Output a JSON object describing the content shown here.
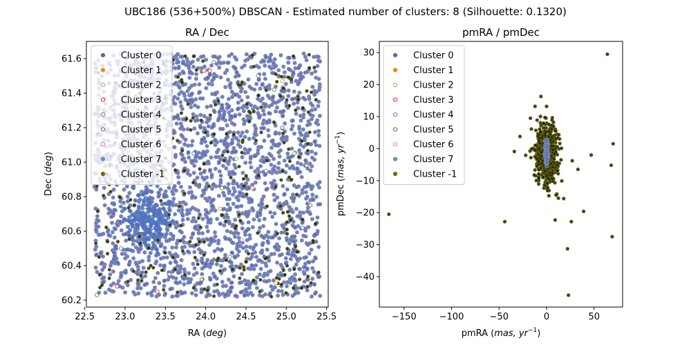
{
  "figure": {
    "suptitle": "UBC186 (536+500%) DBSCAN - Estimated number of clusters: 8 (Silhouette: 0.1320)"
  },
  "chart_data": [
    {
      "type": "scatter",
      "title": "RA / Dec",
      "xlabel_text": "RA (",
      "xlabel_math": "deg",
      "xlabel_close": ")",
      "ylabel_text": "Dec (",
      "ylabel_math": "deg",
      "ylabel_close": ")",
      "xlim": [
        22.52,
        25.52
      ],
      "ylim": [
        60.16,
        61.7
      ],
      "xticks": [
        22.5,
        23.0,
        23.5,
        24.0,
        24.5,
        25.0,
        25.5
      ],
      "xtick_labels": [
        "22.5",
        "23.0",
        "23.5",
        "24.0",
        "24.5",
        "25.0",
        "25.5"
      ],
      "yticks": [
        60.2,
        60.4,
        60.6,
        60.8,
        61.0,
        61.2,
        61.4,
        61.6
      ],
      "ytick_labels": [
        "60.2",
        "60.4",
        "60.6",
        "60.8",
        "61.0",
        "61.2",
        "61.4",
        "61.6"
      ],
      "legend_position": "top-left",
      "noise_x_range": [
        22.62,
        25.42
      ],
      "noise_y_range": [
        60.22,
        61.63
      ],
      "cluster_center": [
        23.3,
        60.66
      ],
      "series": [
        {
          "name": "Cluster 0",
          "color": "#5b6aa8",
          "points": [
            [
              22.72,
              60.9
            ],
            [
              23.1,
              61.32
            ],
            [
              23.85,
              61.05
            ],
            [
              24.3,
              60.45
            ],
            [
              24.95,
              61.2
            ],
            [
              25.2,
              60.62
            ],
            [
              23.55,
              60.35
            ],
            [
              24.65,
              61.5
            ],
            [
              22.95,
              60.5
            ],
            [
              24.1,
              61.58
            ]
          ]
        },
        {
          "name": "Cluster 1",
          "color": "#ff7f0e",
          "points": [
            [
              23.98,
              61.53
            ],
            [
              24.95,
              61.47
            ],
            [
              24.18,
              60.73
            ],
            [
              24.58,
              60.85
            ],
            [
              24.87,
              60.3
            ]
          ]
        },
        {
          "name": "Cluster 2",
          "color": "#7fb85a",
          "points": [
            [
              25.1,
              61.05
            ],
            [
              23.55,
              61.25
            ],
            [
              24.38,
              61.02
            ]
          ]
        },
        {
          "name": "Cluster 3",
          "color": "#d62728",
          "points": [
            [
              22.9,
              60.28
            ],
            [
              24.05,
              61.53
            ],
            [
              23.4,
              60.25
            ]
          ]
        },
        {
          "name": "Cluster 4",
          "color": "#9467bd",
          "points": [
            [
              24.75,
              60.95
            ],
            [
              23.72,
              61.12
            ]
          ]
        },
        {
          "name": "Cluster 5",
          "color": "#8c564b",
          "points": [
            [
              23.2,
              61.55
            ],
            [
              25.3,
              60.75
            ]
          ]
        },
        {
          "name": "Cluster 6",
          "color": "#e377c2",
          "points": [
            [
              24.45,
              60.55
            ],
            [
              23.05,
              61.05
            ]
          ]
        },
        {
          "name": "Cluster 7",
          "color": "#6b8fb3",
          "points": [
            [
              23.32,
              60.7
            ],
            [
              23.28,
              60.64
            ],
            [
              23.38,
              60.67
            ],
            [
              23.25,
              60.72
            ],
            [
              23.35,
              60.6
            ]
          ]
        },
        {
          "name": "Cluster -1",
          "color": "#6e6e00",
          "points": [
            [
              22.65,
              60.23
            ],
            [
              24.85,
              61.42
            ],
            [
              23.95,
              60.32
            ],
            [
              25.25,
              60.98
            ],
            [
              22.8,
              61.3
            ],
            [
              24.2,
              60.85
            ]
          ]
        }
      ]
    },
    {
      "type": "scatter",
      "title": "pmRA / pmDec",
      "xlabel_text": "pmRA (",
      "xlabel_math": "mas, yr",
      "xlabel_sup": "−1",
      "xlabel_close": ")",
      "ylabel_text": "pmDec (",
      "ylabel_math": "mas, yr",
      "ylabel_sup": "−1",
      "ylabel_close": ")",
      "xlim": [
        -176,
        80
      ],
      "ylim": [
        -49.5,
        33.5
      ],
      "xticks": [
        -150,
        -100,
        -50,
        0,
        50
      ],
      "xtick_labels": [
        "−150",
        "−100",
        "−50",
        "0",
        "50"
      ],
      "yticks": [
        -40,
        -30,
        -20,
        -10,
        0,
        10,
        20,
        30
      ],
      "ytick_labels": [
        "−40",
        "−30",
        "−20",
        "−10",
        "0",
        "10",
        "20",
        "30"
      ],
      "legend_position": "top-left",
      "outliers": [
        [
          -166,
          -20.5
        ],
        [
          -44,
          -22.8
        ],
        [
          9,
          -22.3
        ],
        [
          26,
          -22.8
        ],
        [
          22,
          -31.3
        ],
        [
          23,
          -45.8
        ],
        [
          39,
          -19.6
        ],
        [
          47,
          -2
        ],
        [
          64,
          29.5
        ],
        [
          70,
          1.5
        ],
        [
          68,
          -5.2
        ],
        [
          69,
          -27.5
        ],
        [
          -34,
          -0.9
        ],
        [
          -28,
          3.8
        ],
        [
          -6,
          16.3
        ],
        [
          0,
          13.2
        ],
        [
          10,
          -14.5
        ],
        [
          16,
          -10.1
        ],
        [
          27,
          -3.8
        ],
        [
          33,
          -6.5
        ],
        [
          -17,
          9.5
        ],
        [
          -22,
          -2.1
        ],
        [
          18,
          -15.6
        ],
        [
          -10,
          8.9
        ]
      ],
      "series": [
        {
          "name": "Cluster 0",
          "color": "#5b6aa8"
        },
        {
          "name": "Cluster 1",
          "color": "#ff7f0e"
        },
        {
          "name": "Cluster 2",
          "color": "#7fb85a"
        },
        {
          "name": "Cluster 3",
          "color": "#d62728"
        },
        {
          "name": "Cluster 4",
          "color": "#9467bd"
        },
        {
          "name": "Cluster 5",
          "color": "#8c564b"
        },
        {
          "name": "Cluster 6",
          "color": "#e377c2"
        },
        {
          "name": "Cluster 7",
          "color": "#6b8fb3"
        },
        {
          "name": "Cluster -1",
          "color": "#6e6e00"
        }
      ]
    }
  ]
}
